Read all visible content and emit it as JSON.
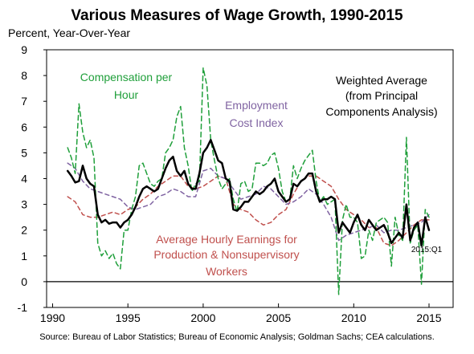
{
  "chart_data": {
    "type": "line",
    "title": "Various Measures of Wage Growth, 1990-2015",
    "ylabel": "Percent, Year-Over-Year",
    "xlabel": "",
    "source": "Source: Bureau of Labor Statistics; Bureau of Economic Analysis; Goldman Sachs; CEA calculations.",
    "xlim": [
      1989.6,
      2016.6
    ],
    "ylim": [
      -1,
      9
    ],
    "xticks": [
      1990,
      1995,
      2000,
      2005,
      2010,
      2015
    ],
    "yticks": [
      -1,
      0,
      1,
      2,
      3,
      4,
      5,
      6,
      7,
      8,
      9
    ],
    "zero_line": true,
    "grid": false,
    "legend": "none (series labeled directly)",
    "end_label": "2015:Q1",
    "series": [
      {
        "name": "Average Hourly Earnings for Production & Nonsupervisory Workers",
        "color": "#c0504d",
        "dash": "5,4",
        "width": 1.5,
        "label_lines": [
          "Average Hourly Earnings for",
          "Production & Nonsupervisory",
          "Workers"
        ],
        "x": [
          1991.0,
          1991.5,
          1992.0,
          1992.5,
          1993.0,
          1993.5,
          1994.0,
          1994.5,
          1995.0,
          1995.5,
          1996.0,
          1996.5,
          1997.0,
          1997.5,
          1998.0,
          1998.5,
          1999.0,
          1999.5,
          2000.0,
          2000.5,
          2001.0,
          2001.5,
          2002.0,
          2002.5,
          2003.0,
          2003.5,
          2004.0,
          2004.5,
          2005.0,
          2005.5,
          2006.0,
          2006.5,
          2007.0,
          2007.5,
          2008.0,
          2008.5,
          2009.0,
          2009.5,
          2010.0,
          2010.5,
          2011.0,
          2011.5,
          2012.0,
          2012.5,
          2013.0,
          2013.5,
          2014.0,
          2014.5,
          2015.0
        ],
        "y": [
          3.3,
          3.1,
          2.6,
          2.5,
          2.5,
          2.6,
          2.7,
          2.6,
          2.8,
          2.9,
          3.2,
          3.4,
          3.7,
          3.9,
          4.1,
          4.1,
          3.7,
          3.6,
          3.7,
          3.9,
          4.1,
          4.0,
          3.0,
          2.8,
          2.7,
          2.4,
          2.2,
          2.3,
          2.6,
          2.8,
          3.4,
          3.9,
          4.1,
          4.1,
          3.9,
          3.7,
          3.2,
          2.8,
          2.6,
          2.4,
          2.1,
          2.1,
          1.5,
          1.4,
          1.6,
          1.9,
          2.2,
          2.4,
          2.4
        ]
      },
      {
        "name": "Employment Cost Index",
        "color": "#8064a2",
        "dash": "5,4",
        "width": 1.5,
        "label_lines": [
          "Employment",
          "Cost Index"
        ],
        "x": [
          1991.0,
          1991.5,
          1992.0,
          1992.5,
          1993.0,
          1993.5,
          1994.0,
          1994.5,
          1995.0,
          1995.5,
          1996.0,
          1996.5,
          1997.0,
          1997.5,
          1998.0,
          1998.5,
          1999.0,
          1999.5,
          2000.0,
          2000.5,
          2001.0,
          2001.5,
          2002.0,
          2002.5,
          2003.0,
          2003.5,
          2004.0,
          2004.5,
          2005.0,
          2005.5,
          2006.0,
          2006.5,
          2007.0,
          2007.5,
          2008.0,
          2008.5,
          2009.0,
          2009.5,
          2010.0,
          2010.5,
          2011.0,
          2011.5,
          2012.0,
          2012.5,
          2013.0,
          2013.5,
          2014.0,
          2014.5,
          2015.0
        ],
        "y": [
          4.6,
          4.4,
          3.9,
          3.6,
          3.5,
          3.4,
          3.3,
          3.2,
          2.9,
          2.8,
          2.9,
          3.0,
          3.3,
          3.4,
          3.6,
          3.5,
          3.3,
          3.3,
          4.3,
          4.4,
          4.1,
          4.0,
          3.6,
          3.2,
          3.3,
          3.4,
          3.7,
          3.6,
          3.3,
          3.0,
          3.1,
          3.3,
          3.6,
          3.4,
          3.0,
          2.5,
          1.6,
          1.8,
          1.9,
          2.0,
          2.1,
          2.2,
          1.9,
          2.0,
          2.0,
          2.1,
          2.2,
          2.3,
          2.6
        ]
      },
      {
        "name": "Compensation per Hour",
        "color": "#1f9f3a",
        "dash": "6,4",
        "width": 1.5,
        "label_lines": [
          "Compensation per",
          "Hour"
        ],
        "x": [
          1991.0,
          1991.25,
          1991.5,
          1991.75,
          1992.0,
          1992.25,
          1992.5,
          1992.75,
          1993.0,
          1993.25,
          1993.5,
          1993.75,
          1994.0,
          1994.25,
          1994.5,
          1994.75,
          1995.0,
          1995.25,
          1995.5,
          1995.75,
          1996.0,
          1996.25,
          1996.5,
          1996.75,
          1997.0,
          1997.25,
          1997.5,
          1997.75,
          1998.0,
          1998.25,
          1998.5,
          1998.75,
          1999.0,
          1999.25,
          1999.5,
          1999.75,
          2000.0,
          2000.25,
          2000.5,
          2000.75,
          2001.0,
          2001.25,
          2001.5,
          2001.75,
          2002.0,
          2002.25,
          2002.5,
          2002.75,
          2003.0,
          2003.25,
          2003.5,
          2003.75,
          2004.0,
          2004.25,
          2004.5,
          2004.75,
          2005.0,
          2005.25,
          2005.5,
          2005.75,
          2006.0,
          2006.25,
          2006.5,
          2006.75,
          2007.0,
          2007.25,
          2007.5,
          2007.75,
          2008.0,
          2008.25,
          2008.5,
          2008.75,
          2009.0,
          2009.25,
          2009.5,
          2009.75,
          2010.0,
          2010.25,
          2010.5,
          2010.75,
          2011.0,
          2011.25,
          2011.5,
          2011.75,
          2012.0,
          2012.25,
          2012.5,
          2012.75,
          2013.0,
          2013.25,
          2013.5,
          2013.75,
          2014.0,
          2014.25,
          2014.5,
          2014.75,
          2015.0
        ],
        "y": [
          5.2,
          4.8,
          4.2,
          6.9,
          5.8,
          5.2,
          5.5,
          4.8,
          1.5,
          1.0,
          1.2,
          0.9,
          1.1,
          0.7,
          0.5,
          2.0,
          2.0,
          2.8,
          3.3,
          4.5,
          4.6,
          4.2,
          3.8,
          3.7,
          3.9,
          4.0,
          5.0,
          5.2,
          5.5,
          6.4,
          6.8,
          5.2,
          4.5,
          3.5,
          3.8,
          3.9,
          8.3,
          7.6,
          5.5,
          4.7,
          4.0,
          3.6,
          3.8,
          4.0,
          3.2,
          2.7,
          3.8,
          3.9,
          3.5,
          3.6,
          4.6,
          4.6,
          4.5,
          4.6,
          4.9,
          5.0,
          4.4,
          3.5,
          3.1,
          3.2,
          4.5,
          4.0,
          4.4,
          4.7,
          4.9,
          5.1,
          3.9,
          3.1,
          3.3,
          3.0,
          3.1,
          3.2,
          -0.5,
          2.4,
          3.0,
          2.5,
          2.5,
          2.3,
          0.9,
          1.0,
          2.0,
          1.6,
          2.3,
          2.4,
          2.5,
          2.3,
          0.6,
          2.5,
          1.8,
          1.6,
          5.6,
          1.5,
          2.0,
          2.2,
          -0.1,
          2.8,
          2.5
        ]
      },
      {
        "name": "Weighted Average (from Principal Components Analysis)",
        "color": "#000000",
        "dash": "",
        "width": 2.5,
        "label_lines": [
          "Weighted Average",
          "(from Principal",
          "Components Analysis)"
        ],
        "x": [
          1991.0,
          1991.25,
          1991.5,
          1991.75,
          1992.0,
          1992.25,
          1992.5,
          1992.75,
          1993.0,
          1993.25,
          1993.5,
          1993.75,
          1994.0,
          1994.25,
          1994.5,
          1994.75,
          1995.0,
          1995.25,
          1995.5,
          1995.75,
          1996.0,
          1996.25,
          1996.5,
          1996.75,
          1997.0,
          1997.25,
          1997.5,
          1997.75,
          1998.0,
          1998.25,
          1998.5,
          1998.75,
          1999.0,
          1999.25,
          1999.5,
          1999.75,
          2000.0,
          2000.25,
          2000.5,
          2000.75,
          2001.0,
          2001.25,
          2001.5,
          2001.75,
          2002.0,
          2002.25,
          2002.5,
          2002.75,
          2003.0,
          2003.25,
          2003.5,
          2003.75,
          2004.0,
          2004.25,
          2004.5,
          2004.75,
          2005.0,
          2005.25,
          2005.5,
          2005.75,
          2006.0,
          2006.25,
          2006.5,
          2006.75,
          2007.0,
          2007.25,
          2007.5,
          2007.75,
          2008.0,
          2008.25,
          2008.5,
          2008.75,
          2009.0,
          2009.25,
          2009.5,
          2009.75,
          2010.0,
          2010.25,
          2010.5,
          2010.75,
          2011.0,
          2011.25,
          2011.5,
          2011.75,
          2012.0,
          2012.25,
          2012.5,
          2012.75,
          2013.0,
          2013.25,
          2013.5,
          2013.75,
          2014.0,
          2014.25,
          2014.5,
          2014.75,
          2015.0
        ],
        "y": [
          4.3,
          4.1,
          3.85,
          3.9,
          4.5,
          4.0,
          3.8,
          3.7,
          2.6,
          2.3,
          2.4,
          2.25,
          2.3,
          2.3,
          2.1,
          2.3,
          2.4,
          2.6,
          2.9,
          3.3,
          3.6,
          3.7,
          3.6,
          3.5,
          3.6,
          4.0,
          4.4,
          4.7,
          4.85,
          4.3,
          4.1,
          4.3,
          3.8,
          3.6,
          3.6,
          4.2,
          5.0,
          5.2,
          5.5,
          5.1,
          4.7,
          4.6,
          4.0,
          3.9,
          2.8,
          2.75,
          2.9,
          3.1,
          3.1,
          3.3,
          3.5,
          3.4,
          3.5,
          3.7,
          3.8,
          4.0,
          3.5,
          3.3,
          3.1,
          3.2,
          3.8,
          3.7,
          3.9,
          4.0,
          4.2,
          4.2,
          3.5,
          3.1,
          3.2,
          3.2,
          3.3,
          3.2,
          1.9,
          2.3,
          2.1,
          1.9,
          2.3,
          2.6,
          2.2,
          2.0,
          2.4,
          2.2,
          2.0,
          2.1,
          2.2,
          1.9,
          1.5,
          1.7,
          1.9,
          1.7,
          3.0,
          1.6,
          2.1,
          2.3,
          1.4,
          2.5,
          2.0
        ]
      }
    ]
  }
}
